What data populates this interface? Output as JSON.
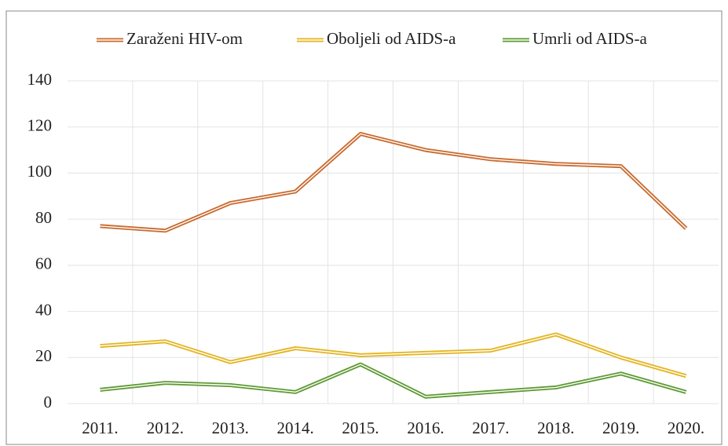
{
  "chart_data": {
    "type": "line",
    "categories": [
      "2011.",
      "2012.",
      "2013.",
      "2014.",
      "2015.",
      "2016.",
      "2017.",
      "2018.",
      "2019.",
      "2020."
    ],
    "series": [
      {
        "name": "Zaraženi HIV-om",
        "color": "#c96a2e",
        "values": [
          77,
          75,
          87,
          92,
          117,
          110,
          106,
          104,
          103,
          76
        ]
      },
      {
        "name": "Oboljeli od AIDS-a",
        "color": "#e3b41f",
        "values": [
          25,
          27,
          18,
          24,
          21,
          22,
          23,
          30,
          20,
          12
        ]
      },
      {
        "name": "Umrli od AIDS-a",
        "color": "#5e9a34",
        "values": [
          6,
          9,
          8,
          5,
          17,
          3,
          5,
          7,
          13,
          5
        ]
      }
    ],
    "ylim": [
      0,
      140
    ],
    "yticks": [
      0,
      20,
      40,
      60,
      80,
      100,
      120,
      140
    ],
    "grid": true,
    "legend": "top"
  }
}
